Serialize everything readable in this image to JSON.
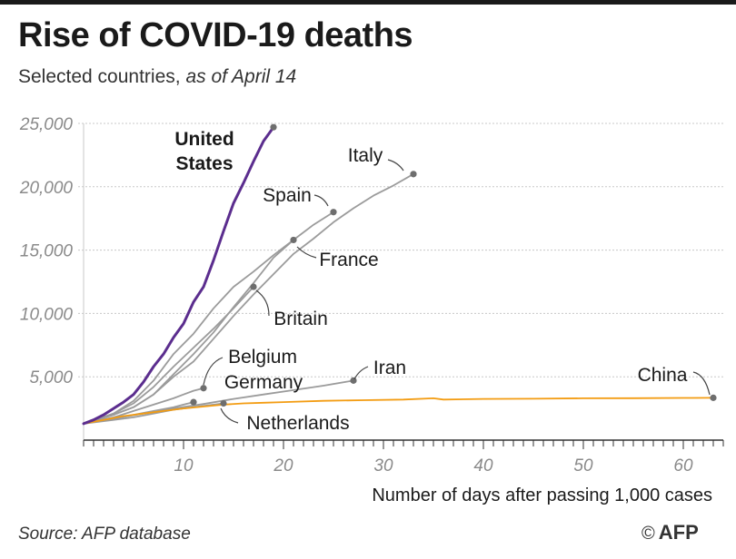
{
  "header": {
    "title": "Rise of COVID-19 deaths",
    "subtitle_main": "Selected countries,",
    "subtitle_italic": "as of April 14"
  },
  "footer": {
    "source": "Source: AFP database",
    "copyright_symbol": "©",
    "agency": "AFP"
  },
  "colors": {
    "us": "#5b2d8e",
    "china": "#f39c12",
    "others": "#9b9b9b",
    "marker": "#6e6e6e",
    "grid": "#c8c8c8",
    "axis": "#333333"
  },
  "chart_data": {
    "type": "line",
    "title": "Rise of COVID-19 deaths",
    "subtitle": "Selected countries, as of April 14",
    "xlabel": "Number of days after passing 1,000 cases",
    "ylabel": "",
    "xlim": [
      0,
      64
    ],
    "ylim": [
      0,
      25000
    ],
    "x_ticks": [
      10,
      20,
      30,
      40,
      50,
      60
    ],
    "x_tick_labels": [
      "10",
      "20",
      "30",
      "40",
      "50",
      "60"
    ],
    "y_ticks": [
      5000,
      10000,
      15000,
      20000,
      25000
    ],
    "y_tick_labels": [
      "5,000",
      "10,000",
      "15,000",
      "20,000",
      "25,000"
    ],
    "series": [
      {
        "name": "Italy",
        "label_lines": [
          "Italy"
        ],
        "color_key": "others",
        "bold": false,
        "z": 1,
        "x": [
          0,
          3,
          5,
          7,
          9,
          11,
          13,
          15,
          17,
          19,
          21,
          23,
          25,
          27,
          29,
          31,
          33
        ],
        "y": [
          1300,
          2000,
          2600,
          3600,
          5000,
          6200,
          8000,
          9800,
          11500,
          13100,
          14700,
          15900,
          17200,
          18300,
          19300,
          20100,
          21000
        ]
      },
      {
        "name": "Spain",
        "label_lines": [
          "Spain"
        ],
        "color_key": "others",
        "bold": false,
        "z": 1,
        "x": [
          0,
          3,
          5,
          7,
          9,
          11,
          13,
          15,
          17,
          19,
          21,
          23,
          25
        ],
        "y": [
          1300,
          2100,
          3100,
          4700,
          6800,
          8400,
          10400,
          12100,
          13300,
          14600,
          15800,
          17000,
          18000
        ]
      },
      {
        "name": "France",
        "label_lines": [
          "France"
        ],
        "color_key": "others",
        "bold": false,
        "z": 1,
        "x": [
          0,
          3,
          5,
          7,
          9,
          11,
          13,
          15,
          17,
          19,
          21
        ],
        "y": [
          1300,
          2000,
          2600,
          3600,
          5200,
          6800,
          8500,
          10500,
          12400,
          14400,
          15800
        ]
      },
      {
        "name": "Britain",
        "label_lines": [
          "Britain"
        ],
        "color_key": "others",
        "bold": false,
        "z": 1,
        "x": [
          0,
          3,
          5,
          7,
          9,
          11,
          13,
          15,
          17
        ],
        "y": [
          1300,
          2100,
          2900,
          4200,
          5800,
          7300,
          8800,
          10400,
          12100
        ]
      },
      {
        "name": "Belgium",
        "label_lines": [
          "Belgium"
        ],
        "color_key": "others",
        "bold": false,
        "z": 1,
        "x": [
          0,
          3,
          5,
          7,
          9,
          10,
          11,
          12
        ],
        "y": [
          1300,
          1800,
          2300,
          2800,
          3300,
          3600,
          3900,
          4100
        ]
      },
      {
        "name": "Germany",
        "label_lines": [
          "Germany"
        ],
        "color_key": "others",
        "bold": false,
        "z": 1,
        "x": [
          0,
          3,
          5,
          7,
          9,
          10,
          11
        ],
        "y": [
          1300,
          1700,
          2000,
          2300,
          2600,
          2800,
          3000
        ]
      },
      {
        "name": "Iran",
        "label_lines": [
          "Iran"
        ],
        "color_key": "others",
        "bold": false,
        "z": 1,
        "x": [
          0,
          3,
          6,
          9,
          12,
          15,
          18,
          21,
          24,
          27
        ],
        "y": [
          1300,
          1700,
          2100,
          2500,
          2850,
          3250,
          3600,
          3950,
          4300,
          4700
        ]
      },
      {
        "name": "Netherlands",
        "label_lines": [
          "Netherlands"
        ],
        "color_key": "others",
        "bold": false,
        "z": 1,
        "x": [
          0,
          3,
          5,
          7,
          9,
          11,
          13,
          14
        ],
        "y": [
          1300,
          1600,
          1800,
          2100,
          2400,
          2600,
          2800,
          2900
        ]
      },
      {
        "name": "China",
        "label_lines": [
          "China"
        ],
        "color_key": "china",
        "bold": false,
        "z": 2,
        "x": [
          0,
          2,
          4,
          6,
          8,
          10,
          12,
          14,
          16,
          18,
          20,
          24,
          28,
          32,
          35,
          36,
          40,
          45,
          50,
          55,
          60,
          63
        ],
        "y": [
          1300,
          1600,
          1900,
          2100,
          2300,
          2500,
          2650,
          2800,
          2900,
          2950,
          3000,
          3100,
          3150,
          3200,
          3300,
          3200,
          3250,
          3270,
          3300,
          3310,
          3330,
          3340
        ]
      },
      {
        "name": "United States",
        "label_lines": [
          "United",
          "States"
        ],
        "color_key": "us",
        "bold": true,
        "z": 3,
        "x": [
          0,
          1,
          2,
          3,
          4,
          5,
          6,
          7,
          8,
          9,
          10,
          11,
          12,
          13,
          14,
          15,
          16,
          17,
          18,
          19
        ],
        "y": [
          1300,
          1600,
          2000,
          2500,
          3000,
          3600,
          4600,
          5800,
          6800,
          8100,
          9200,
          10900,
          12100,
          14200,
          16500,
          18700,
          20300,
          22000,
          23600,
          24700
        ]
      }
    ]
  }
}
